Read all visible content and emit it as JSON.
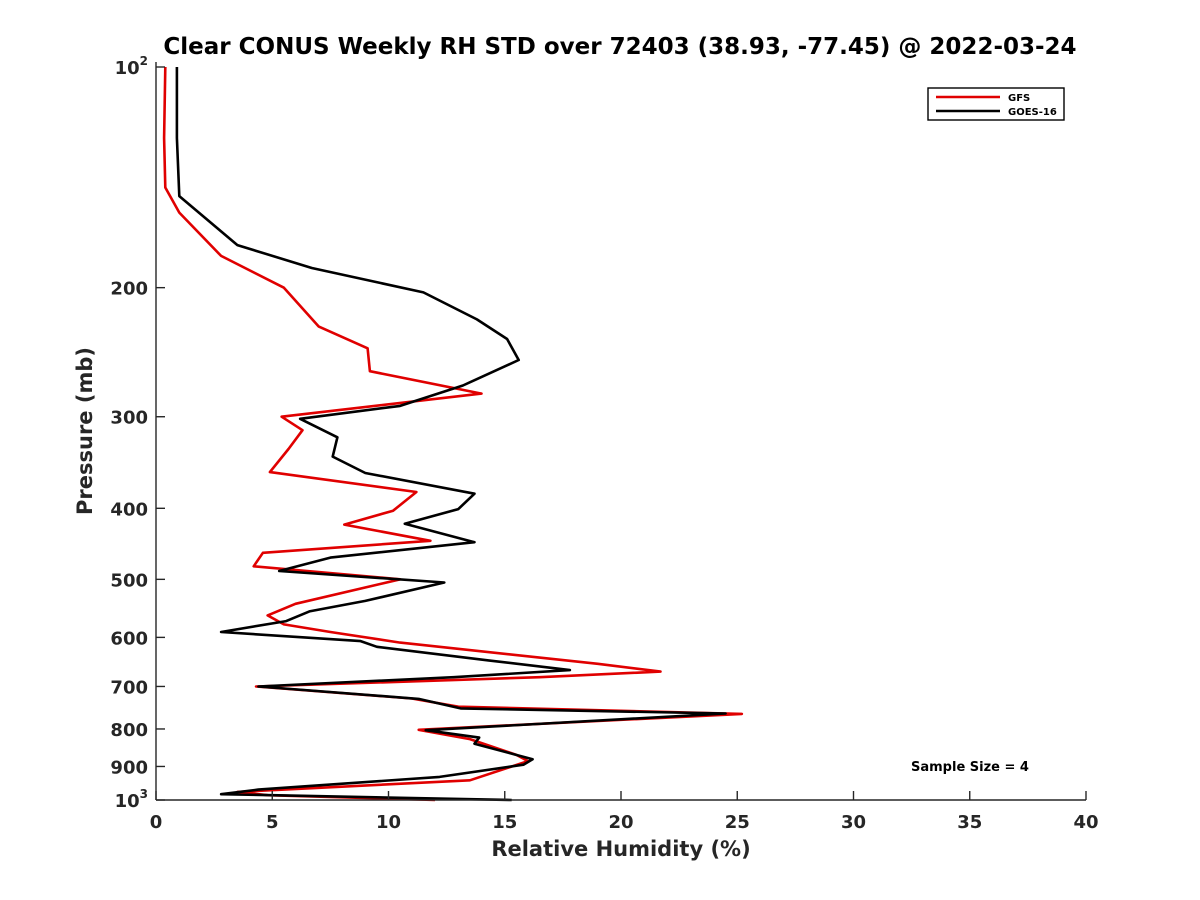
{
  "chart_data": {
    "type": "line",
    "title": "Clear CONUS Weekly RH STD over 72403 (38.93, -77.45) @ 2022-03-24",
    "xlabel": "Relative Humidity (%)",
    "ylabel": "Pressure (mb)",
    "xlim": [
      0,
      40
    ],
    "ylim": [
      1000,
      100
    ],
    "y_scale": "log",
    "y_reversed": true,
    "x_ticks": [
      "0",
      "5",
      "10",
      "15",
      "20",
      "25",
      "30",
      "35",
      "40"
    ],
    "y_ticks": [
      {
        "value": 100,
        "label": "10",
        "sup": "2"
      },
      {
        "value": 200,
        "label": "200",
        "sup": ""
      },
      {
        "value": 300,
        "label": "300",
        "sup": ""
      },
      {
        "value": 400,
        "label": "400",
        "sup": ""
      },
      {
        "value": 500,
        "label": "500",
        "sup": ""
      },
      {
        "value": 600,
        "label": "600",
        "sup": ""
      },
      {
        "value": 700,
        "label": "700",
        "sup": ""
      },
      {
        "value": 800,
        "label": "800",
        "sup": ""
      },
      {
        "value": 900,
        "label": "900",
        "sup": ""
      },
      {
        "value": 1000,
        "label": "10",
        "sup": "3"
      }
    ],
    "grid": false,
    "legend_position": "top-right",
    "annotation": "Sample Size = 4",
    "series": [
      {
        "name": "GFS",
        "color": "#e00000",
        "points": [
          [
            0.4,
            100
          ],
          [
            0.35,
            125
          ],
          [
            0.4,
            146
          ],
          [
            1.0,
            158
          ],
          [
            2.8,
            181
          ],
          [
            5.5,
            200
          ],
          [
            7.0,
            226
          ],
          [
            9.1,
            242
          ],
          [
            9.2,
            260
          ],
          [
            14.0,
            279
          ],
          [
            5.4,
            300
          ],
          [
            6.3,
            313
          ],
          [
            5.7,
            332
          ],
          [
            4.9,
            357
          ],
          [
            11.2,
            380
          ],
          [
            10.2,
            403
          ],
          [
            8.1,
            421
          ],
          [
            11.8,
            443
          ],
          [
            4.6,
            460
          ],
          [
            4.2,
            480
          ],
          [
            10.5,
            500
          ],
          [
            6.0,
            540
          ],
          [
            4.8,
            560
          ],
          [
            5.5,
            576
          ],
          [
            7.5,
            590
          ],
          [
            10.5,
            610
          ],
          [
            19.0,
            652
          ],
          [
            21.7,
            668
          ],
          [
            16.5,
            680
          ],
          [
            4.3,
            700
          ],
          [
            11.0,
            727
          ],
          [
            13.0,
            746
          ],
          [
            25.2,
            763
          ],
          [
            11.3,
            802
          ],
          [
            13.5,
            826
          ],
          [
            15.5,
            868
          ],
          [
            16.0,
            885
          ],
          [
            13.5,
            940
          ],
          [
            3.5,
            975
          ],
          [
            4.8,
            985
          ],
          [
            12.0,
            1000
          ]
        ]
      },
      {
        "name": "GOES-16",
        "color": "#000000",
        "points": [
          [
            0.9,
            100
          ],
          [
            0.9,
            125
          ],
          [
            1.0,
            150
          ],
          [
            3.5,
            175
          ],
          [
            6.7,
            188
          ],
          [
            11.5,
            203
          ],
          [
            13.8,
            221
          ],
          [
            15.1,
            235
          ],
          [
            15.6,
            251
          ],
          [
            13.2,
            272
          ],
          [
            10.5,
            290
          ],
          [
            6.2,
            302
          ],
          [
            7.8,
            320
          ],
          [
            7.6,
            340
          ],
          [
            9.0,
            358
          ],
          [
            13.7,
            382
          ],
          [
            13.0,
            401
          ],
          [
            10.7,
            420
          ],
          [
            13.7,
            445
          ],
          [
            7.5,
            467
          ],
          [
            5.3,
            487
          ],
          [
            12.4,
            505
          ],
          [
            9.0,
            535
          ],
          [
            6.6,
            553
          ],
          [
            5.6,
            570
          ],
          [
            2.8,
            590
          ],
          [
            8.8,
            607
          ],
          [
            9.5,
            618
          ],
          [
            14.3,
            645
          ],
          [
            17.8,
            665
          ],
          [
            12.8,
            680
          ],
          [
            4.4,
            700
          ],
          [
            11.3,
            728
          ],
          [
            13.1,
            750
          ],
          [
            24.5,
            762
          ],
          [
            11.6,
            803
          ],
          [
            13.9,
            822
          ],
          [
            13.7,
            838
          ],
          [
            16.2,
            880
          ],
          [
            15.8,
            895
          ],
          [
            12.2,
            930
          ],
          [
            4.4,
            968
          ],
          [
            2.8,
            982
          ],
          [
            15.3,
            1000
          ]
        ]
      }
    ]
  }
}
